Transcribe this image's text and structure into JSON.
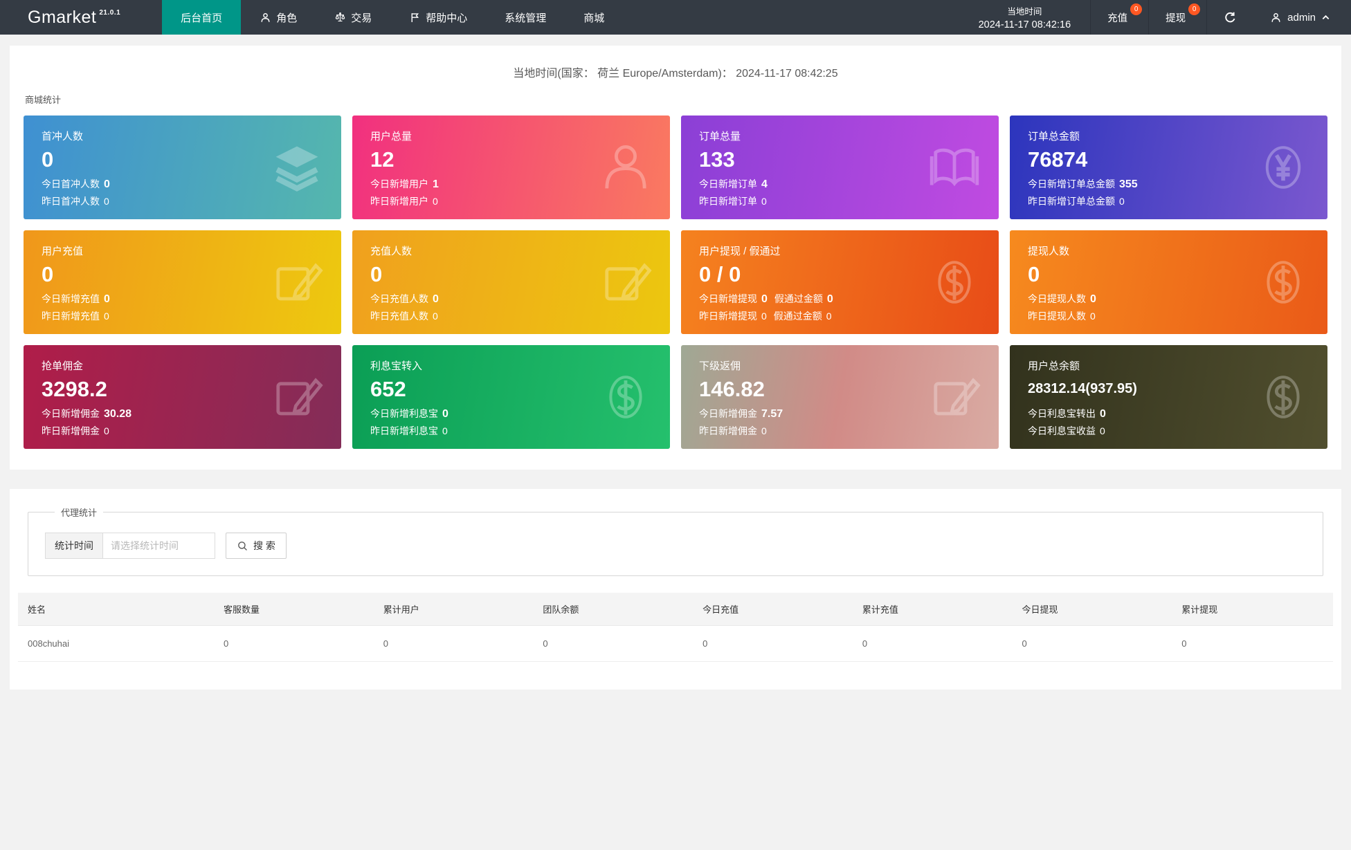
{
  "navbar": {
    "brand": "Gmarket",
    "version": "21.0.1",
    "accent_color": "#009688",
    "badge_color": "#ff5722",
    "items": [
      {
        "name": "dashboard",
        "label": "后台首页",
        "icon": "",
        "active": true
      },
      {
        "name": "roles",
        "label": "角色",
        "icon": "person-icon",
        "active": false
      },
      {
        "name": "trade",
        "label": "交易",
        "icon": "scales-icon",
        "active": false
      },
      {
        "name": "help-center",
        "label": "帮助中心",
        "icon": "flag-icon",
        "active": false
      },
      {
        "name": "system",
        "label": "系统管理",
        "icon": "",
        "active": false
      },
      {
        "name": "mall",
        "label": "商城",
        "icon": "",
        "active": false
      }
    ],
    "local_time_label": "当地时间",
    "local_time_value": "2024-11-17 08:42:16",
    "recharge": {
      "label": "充值",
      "badge": "0"
    },
    "withdraw": {
      "label": "提现",
      "badge": "0"
    },
    "user": "admin"
  },
  "main_header": {
    "line": "当地时间(国家： 荷兰 Europe/Amsterdam)：  2024-11-17 08:42:25"
  },
  "stats": {
    "section_label": "商城统计",
    "cards": [
      {
        "title": "首冲人数",
        "value": "0",
        "icon": "layers-icon",
        "colors": [
          "#3f90d2",
          "#55b7ad"
        ],
        "line1": [
          {
            "label": "今日首冲人数",
            "value": "0"
          }
        ],
        "line2": [
          {
            "label": "昨日首冲人数",
            "value": "0"
          }
        ]
      },
      {
        "title": "用户总量",
        "value": "12",
        "icon": "user-icon",
        "colors": [
          "#f1307f",
          "#fa7a60"
        ],
        "line1": [
          {
            "label": "今日新增用户",
            "value": "1"
          }
        ],
        "line2": [
          {
            "label": "昨日新增用户",
            "value": "0"
          }
        ]
      },
      {
        "title": "订单总量",
        "value": "133",
        "icon": "book-icon",
        "colors": [
          "#8b3fd6",
          "#c04be1"
        ],
        "line1": [
          {
            "label": "今日新增订单",
            "value": "4"
          }
        ],
        "line2": [
          {
            "label": "昨日新增订单",
            "value": "0"
          }
        ]
      },
      {
        "title": "订单总金额",
        "value": "76874",
        "icon": "yen-icon",
        "colors": [
          "#2c35bd",
          "#7b58cf"
        ],
        "line1": [
          {
            "label": "今日新增订单总金额",
            "value": "355"
          }
        ],
        "line2": [
          {
            "label": "昨日新增订单总金额",
            "value": "0"
          }
        ]
      },
      {
        "title": "用户充值",
        "value": "0",
        "icon": "edit-icon",
        "colors": [
          "#f0971b",
          "#edc90f"
        ],
        "line1": [
          {
            "label": "今日新增充值",
            "value": "0"
          }
        ],
        "line2": [
          {
            "label": "昨日新增充值",
            "value": "0"
          }
        ]
      },
      {
        "title": "充值人数",
        "value": "0",
        "icon": "edit-icon",
        "colors": [
          "#f0a01e",
          "#ecc70f"
        ],
        "line1": [
          {
            "label": "今日充值人数",
            "value": "0"
          }
        ],
        "line2": [
          {
            "label": "昨日充值人数",
            "value": "0"
          }
        ]
      },
      {
        "title": "用户提现 / 假通过",
        "value": "0 / 0",
        "icon": "dollar-icon",
        "colors": [
          "#f5821f",
          "#e84c17"
        ],
        "line1": [
          {
            "label": "今日新增提现",
            "value": "0"
          },
          {
            "label": "假通过金额",
            "value": "0"
          }
        ],
        "line2": [
          {
            "label": "昨日新增提现",
            "value": "0"
          },
          {
            "label": "假通过金额",
            "value": "0"
          }
        ]
      },
      {
        "title": "提现人数",
        "value": "0",
        "icon": "dollar-icon",
        "colors": [
          "#f68a1e",
          "#ea5a18"
        ],
        "line1": [
          {
            "label": "今日提现人数",
            "value": "0"
          }
        ],
        "line2": [
          {
            "label": "昨日提现人数",
            "value": "0"
          }
        ]
      },
      {
        "title": "抢单佣金",
        "value": "3298.2",
        "icon": "edit-icon",
        "colors": [
          "#b01d49",
          "#832d58"
        ],
        "line1": [
          {
            "label": "今日新增佣金",
            "value": "30.28"
          }
        ],
        "line2": [
          {
            "label": "昨日新增佣金",
            "value": "0"
          }
        ]
      },
      {
        "title": "利息宝转入",
        "value": "652",
        "icon": "dollar-icon",
        "colors": [
          "#0b9e55",
          "#25c06d"
        ],
        "line1": [
          {
            "label": "今日新增利息宝",
            "value": "0"
          }
        ],
        "line2": [
          {
            "label": "昨日新增利息宝",
            "value": "0"
          }
        ]
      },
      {
        "title": "下级返佣",
        "value": "146.82",
        "icon": "edit-icon",
        "colors": [
          "#9fa894",
          "#d18b87",
          "#d9aba3"
        ],
        "line1": [
          {
            "label": "今日新增佣金",
            "value": "7.57"
          }
        ],
        "line2": [
          {
            "label": "昨日新增佣金",
            "value": "0"
          }
        ]
      },
      {
        "title": "用户总余额",
        "value": "28312.14(937.95)",
        "icon": "dollar-icon",
        "colors": [
          "#32321d",
          "#514f2e"
        ],
        "line1": [
          {
            "label": "今日利息宝转出",
            "value": "0"
          }
        ],
        "line2": [
          {
            "label": "今日利息宝收益",
            "value": "0"
          }
        ]
      }
    ]
  },
  "agent": {
    "legend": "代理统计",
    "time_label": "统计时间",
    "time_placeholder": "请选择统计时间",
    "search_label": "搜 索",
    "table": {
      "headers": [
        "姓名",
        "客服数量",
        "累计用户",
        "团队余额",
        "今日充值",
        "累计充值",
        "今日提现",
        "累计提现"
      ],
      "rows": [
        [
          "008chuhai",
          "0",
          "0",
          "0",
          "0",
          "0",
          "0",
          "0"
        ]
      ]
    }
  }
}
